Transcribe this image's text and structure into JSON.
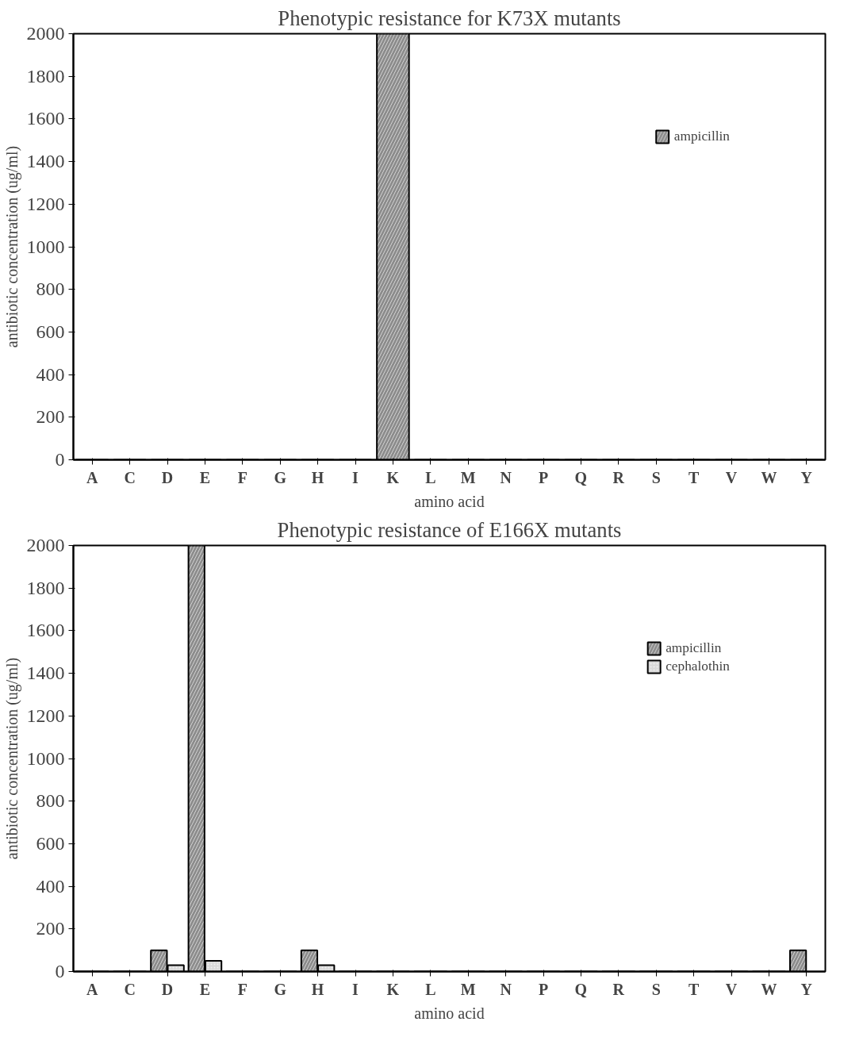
{
  "chart_data": [
    {
      "type": "bar",
      "title": "Phenotypic resistance for K73X mutants",
      "xlabel": "amino acid",
      "ylabel": "antibiotic concentration (ug/ml)",
      "categories": [
        "A",
        "C",
        "D",
        "E",
        "F",
        "G",
        "H",
        "I",
        "K",
        "L",
        "M",
        "N",
        "P",
        "Q",
        "R",
        "S",
        "T",
        "V",
        "W",
        "Y"
      ],
      "series": [
        {
          "name": "ampicillin",
          "color": "#8c8c8c",
          "values": [
            0,
            0,
            0,
            0,
            0,
            0,
            0,
            0,
            2000,
            0,
            0,
            0,
            0,
            0,
            0,
            0,
            0,
            0,
            0,
            0
          ]
        }
      ],
      "ylim": [
        0,
        2000
      ],
      "yticks": [
        0,
        200,
        400,
        600,
        800,
        1000,
        1200,
        1400,
        1600,
        1800,
        2000
      ],
      "grid": false,
      "legend": "top right"
    },
    {
      "type": "bar",
      "title": "Phenotypic resistance of E166X mutants",
      "xlabel": "amino acid",
      "ylabel": "antibiotic concentration (ug/ml)",
      "categories": [
        "A",
        "C",
        "D",
        "E",
        "F",
        "G",
        "H",
        "I",
        "K",
        "L",
        "M",
        "N",
        "P",
        "Q",
        "R",
        "S",
        "T",
        "V",
        "W",
        "Y"
      ],
      "series": [
        {
          "name": "ampicillin",
          "color": "#8c8c8c",
          "values": [
            0,
            0,
            100,
            2000,
            0,
            0,
            100,
            0,
            0,
            0,
            0,
            0,
            0,
            0,
            0,
            0,
            0,
            0,
            0,
            100
          ]
        },
        {
          "name": "cephalothin",
          "color": "#d9d9d9",
          "values": [
            0,
            0,
            30,
            50,
            0,
            0,
            30,
            0,
            0,
            0,
            0,
            0,
            0,
            0,
            0,
            0,
            0,
            0,
            0,
            null
          ]
        }
      ],
      "ylim": [
        0,
        2000
      ],
      "yticks": [
        0,
        200,
        400,
        600,
        800,
        1000,
        1200,
        1400,
        1600,
        1800,
        2000
      ],
      "grid": false,
      "legend": "top right"
    }
  ]
}
